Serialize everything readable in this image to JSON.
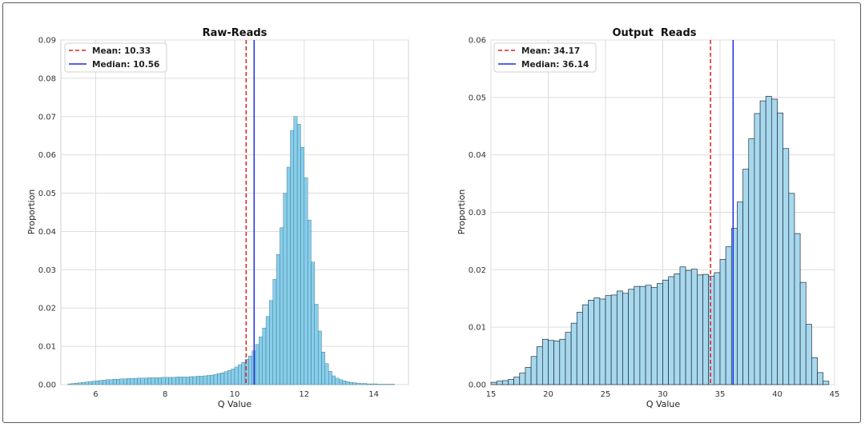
{
  "chart_data": [
    {
      "type": "histogram",
      "title": "Raw-Reads",
      "xlabel": "Q Value",
      "ylabel": "Proportion",
      "xlim": [
        5.0,
        15.0
      ],
      "ylim": [
        0,
        0.09
      ],
      "xticks": [
        "6",
        "8",
        "10",
        "12",
        "14"
      ],
      "yticks": [
        "0.00",
        "0.01",
        "0.02",
        "0.03",
        "0.04",
        "0.05",
        "0.06",
        "0.07",
        "0.08",
        "0.09"
      ],
      "grid": true,
      "legend_position": "top-left",
      "bar_color": "#87CEEB",
      "bar_edge_color": "#2b5d73",
      "bin_start": 5.2,
      "bin_width": 0.1,
      "values": [
        0.0002,
        0.0003,
        0.0004,
        0.0005,
        0.0006,
        0.0007,
        0.0008,
        0.0009,
        0.001,
        0.0011,
        0.0012,
        0.0013,
        0.0013,
        0.0014,
        0.0014,
        0.0015,
        0.0015,
        0.0016,
        0.0016,
        0.0016,
        0.0017,
        0.0017,
        0.0017,
        0.0018,
        0.0018,
        0.0018,
        0.0018,
        0.0019,
        0.0019,
        0.0019,
        0.0019,
        0.002,
        0.002,
        0.002,
        0.002,
        0.0021,
        0.0021,
        0.0022,
        0.0022,
        0.0023,
        0.0024,
        0.0025,
        0.0027,
        0.0029,
        0.0031,
        0.0034,
        0.0037,
        0.0041,
        0.0046,
        0.0052,
        0.0058,
        0.0066,
        0.0075,
        0.0088,
        0.0105,
        0.0125,
        0.0148,
        0.0178,
        0.022,
        0.0275,
        0.034,
        0.041,
        0.05,
        0.0568,
        0.0664,
        0.07,
        0.068,
        0.062,
        0.054,
        0.043,
        0.032,
        0.021,
        0.014,
        0.0085,
        0.0055,
        0.0035,
        0.0023,
        0.0017,
        0.0013,
        0.001,
        0.0008,
        0.0006,
        0.0005,
        0.0004,
        0.0003,
        0.0003,
        0.0002,
        0.0002,
        0.0002,
        0.0001,
        0.0001,
        0.0001,
        0.0001,
        0.0001
      ],
      "series": [
        {
          "name": "Mean: 10.33",
          "value": 10.33,
          "color": "#e02020",
          "style": "dashed"
        },
        {
          "name": "Median: 10.56",
          "value": 10.56,
          "color": "#1a2ee0",
          "style": "solid"
        }
      ]
    },
    {
      "type": "histogram",
      "title": "Output  Reads",
      "xlabel": "Q Value",
      "ylabel": "Proportion",
      "xlim": [
        15,
        45
      ],
      "ylim": [
        0,
        0.06
      ],
      "xticks": [
        "15",
        "20",
        "25",
        "30",
        "35",
        "40",
        "45"
      ],
      "yticks": [
        "0.00",
        "0.01",
        "0.02",
        "0.03",
        "0.04",
        "0.05",
        "0.06"
      ],
      "grid": true,
      "legend_position": "top-left",
      "bar_color": "#A8D8EE",
      "bar_edge_color": "#1f2f3a",
      "bin_start": 15,
      "bin_width": 0.5,
      "values": [
        0.0004,
        0.0006,
        0.0007,
        0.0009,
        0.0013,
        0.002,
        0.003,
        0.0049,
        0.0066,
        0.0079,
        0.0077,
        0.0076,
        0.0079,
        0.0091,
        0.0107,
        0.0126,
        0.0139,
        0.0147,
        0.0151,
        0.0149,
        0.0155,
        0.0156,
        0.0163,
        0.0159,
        0.0166,
        0.0171,
        0.0171,
        0.0173,
        0.0169,
        0.0176,
        0.0182,
        0.0188,
        0.0193,
        0.0205,
        0.0199,
        0.0201,
        0.0191,
        0.0192,
        0.0189,
        0.0195,
        0.0218,
        0.024,
        0.0272,
        0.0318,
        0.0375,
        0.0428,
        0.0472,
        0.0494,
        0.0502,
        0.0497,
        0.0473,
        0.0411,
        0.0333,
        0.0263,
        0.0178,
        0.0105,
        0.0047,
        0.0021,
        0.0006
      ],
      "series": [
        {
          "name": "Mean: 34.17",
          "value": 34.17,
          "color": "#e02020",
          "style": "dashed"
        },
        {
          "name": "Median: 36.14",
          "value": 36.14,
          "color": "#1a2ee0",
          "style": "solid"
        }
      ]
    }
  ]
}
